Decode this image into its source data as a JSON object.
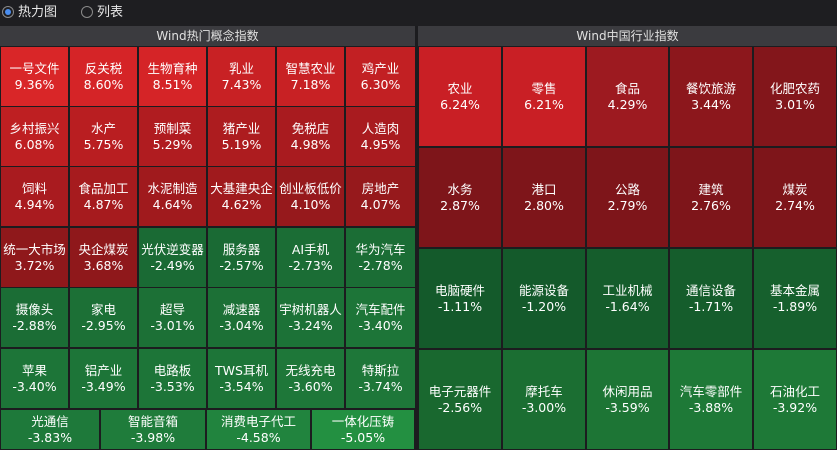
{
  "view_toggle": {
    "heatmap_label": "热力图",
    "list_label": "列表",
    "selected": "heatmap"
  },
  "concept_panel": {
    "title": "Wind热门概念指数",
    "tiles": [
      {
        "name": "一号文件",
        "pct": "9.36%",
        "color": "#d92628"
      },
      {
        "name": "反关税",
        "pct": "8.60%",
        "color": "#d52427"
      },
      {
        "name": "生物育种",
        "pct": "8.51%",
        "color": "#d52427"
      },
      {
        "name": "乳业",
        "pct": "7.43%",
        "color": "#c82124"
      },
      {
        "name": "智慧农业",
        "pct": "7.18%",
        "color": "#c82124"
      },
      {
        "name": "鸡产业",
        "pct": "6.30%",
        "color": "#c22023"
      },
      {
        "name": "乡村振兴",
        "pct": "6.08%",
        "color": "#be1f22"
      },
      {
        "name": "水产",
        "pct": "5.75%",
        "color": "#b91e21"
      },
      {
        "name": "预制菜",
        "pct": "5.29%",
        "color": "#b01c20"
      },
      {
        "name": "猪产业",
        "pct": "5.19%",
        "color": "#ad1c1f"
      },
      {
        "name": "免税店",
        "pct": "4.98%",
        "color": "#a91b1f"
      },
      {
        "name": "人造肉",
        "pct": "4.95%",
        "color": "#a91b1f"
      },
      {
        "name": "饲料",
        "pct": "4.94%",
        "color": "#a91b1f"
      },
      {
        "name": "食品加工",
        "pct": "4.87%",
        "color": "#a61b1e"
      },
      {
        "name": "水泥制造",
        "pct": "4.64%",
        "color": "#a01a1d"
      },
      {
        "name": "大基建央企",
        "pct": "4.62%",
        "color": "#a01a1d"
      },
      {
        "name": "创业板低价",
        "pct": "4.10%",
        "color": "#96191c"
      },
      {
        "name": "房地产",
        "pct": "4.07%",
        "color": "#96191c"
      },
      {
        "name": "统一大市场",
        "pct": "3.72%",
        "color": "#8f181b"
      },
      {
        "name": "央企煤炭",
        "pct": "3.68%",
        "color": "#8f181b"
      },
      {
        "name": "光伏逆变器",
        "pct": "-2.49%",
        "color": "#1a6a34"
      },
      {
        "name": "服务器",
        "pct": "-2.57%",
        "color": "#1a6a34"
      },
      {
        "name": "AI手机",
        "pct": "-2.73%",
        "color": "#1b6d35"
      },
      {
        "name": "华为汽车",
        "pct": "-2.78%",
        "color": "#1b6d35"
      },
      {
        "name": "摄像头",
        "pct": "-2.88%",
        "color": "#1b6d35"
      },
      {
        "name": "家电",
        "pct": "-2.95%",
        "color": "#1c7036"
      },
      {
        "name": "超导",
        "pct": "-3.01%",
        "color": "#1c7036"
      },
      {
        "name": "减速器",
        "pct": "-3.04%",
        "color": "#1c7036"
      },
      {
        "name": "宇树机器人",
        "pct": "-3.24%",
        "color": "#1c7237"
      },
      {
        "name": "汽车配件",
        "pct": "-3.40%",
        "color": "#1d7538"
      },
      {
        "name": "苹果",
        "pct": "-3.40%",
        "color": "#1d7538"
      },
      {
        "name": "铝产业",
        "pct": "-3.49%",
        "color": "#1d7538"
      },
      {
        "name": "电路板",
        "pct": "-3.53%",
        "color": "#1d7538"
      },
      {
        "name": "TWS耳机",
        "pct": "-3.54%",
        "color": "#1d7538"
      },
      {
        "name": "无线充电",
        "pct": "-3.60%",
        "color": "#1e7739"
      },
      {
        "name": "特斯拉",
        "pct": "-3.74%",
        "color": "#1e7739"
      },
      {
        "name": "光通信",
        "pct": "-3.83%",
        "color": "#1e793a"
      },
      {
        "name": "智能音箱",
        "pct": "-3.98%",
        "color": "#1f7c3b"
      },
      {
        "name": "消费电子代工",
        "pct": "-4.58%",
        "color": "#21843e"
      },
      {
        "name": "一体化压铸",
        "pct": "-5.05%",
        "color": "#239041"
      }
    ]
  },
  "industry_panel": {
    "title": "Wind中国行业指数",
    "tiles": [
      {
        "name": "农业",
        "pct": "6.24%",
        "color": "#c91f25"
      },
      {
        "name": "零售",
        "pct": "6.21%",
        "color": "#c91f25"
      },
      {
        "name": "食品",
        "pct": "4.29%",
        "color": "#9d1a20"
      },
      {
        "name": "餐饮旅游",
        "pct": "3.44%",
        "color": "#8c171c"
      },
      {
        "name": "化肥农药",
        "pct": "3.01%",
        "color": "#83161b"
      },
      {
        "name": "水务",
        "pct": "2.87%",
        "color": "#7e151a"
      },
      {
        "name": "港口",
        "pct": "2.80%",
        "color": "#7e151a"
      },
      {
        "name": "公路",
        "pct": "2.79%",
        "color": "#7e151a"
      },
      {
        "name": "建筑",
        "pct": "2.76%",
        "color": "#7e151a"
      },
      {
        "name": "煤炭",
        "pct": "2.74%",
        "color": "#7e151a"
      },
      {
        "name": "电脑硬件",
        "pct": "-1.11%",
        "color": "#145a2b"
      },
      {
        "name": "能源设备",
        "pct": "-1.20%",
        "color": "#145a2b"
      },
      {
        "name": "工业机械",
        "pct": "-1.64%",
        "color": "#155d2c"
      },
      {
        "name": "通信设备",
        "pct": "-1.71%",
        "color": "#155d2c"
      },
      {
        "name": "基本金属",
        "pct": "-1.89%",
        "color": "#16602d"
      },
      {
        "name": "电子元器件",
        "pct": "-2.56%",
        "color": "#19682f"
      },
      {
        "name": "摩托车",
        "pct": "-3.00%",
        "color": "#1b6e32"
      },
      {
        "name": "休闲用品",
        "pct": "-3.59%",
        "color": "#1d7535"
      },
      {
        "name": "汽车零部件",
        "pct": "-3.88%",
        "color": "#1e7937"
      },
      {
        "name": "石油化工",
        "pct": "-3.92%",
        "color": "#1e7937"
      }
    ]
  }
}
